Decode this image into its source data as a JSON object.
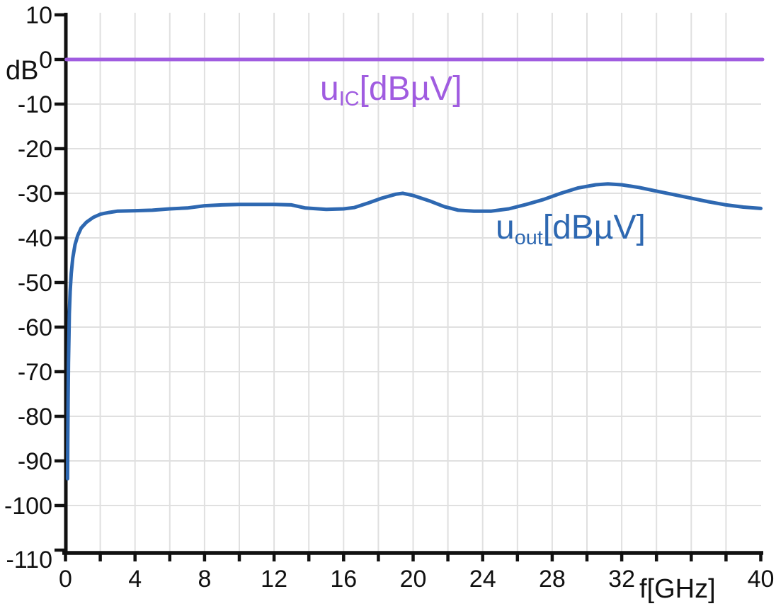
{
  "chart_data": {
    "type": "line",
    "title": "",
    "xlabel": "f[GHz]",
    "ylabel": "dB",
    "xlim": [
      0,
      40
    ],
    "ylim": [
      -110,
      10
    ],
    "grid": true,
    "x_tick_step": 2,
    "x_labeled_ticks": [
      0,
      4,
      8,
      12,
      16,
      20,
      24,
      28,
      32,
      40
    ],
    "y_ticks": [
      10,
      0,
      -10,
      -20,
      -30,
      -40,
      -50,
      -60,
      -70,
      -80,
      -90,
      -100,
      -110
    ],
    "grid_color": "#e0e0e0",
    "axis_color": "#111111",
    "series": [
      {
        "name": "u_IC[dBµV]",
        "label_parts": {
          "main": "u",
          "sub": "IC",
          "rest": "[dBµV]"
        },
        "color": "#a05ce0",
        "points": [
          [
            0.05,
            0
          ],
          [
            40.1,
            0
          ]
        ]
      },
      {
        "name": "u_out[dBµV]",
        "label_parts": {
          "main": "u",
          "sub": "out",
          "rest": "[dBµV]"
        },
        "color": "#2e68b1",
        "points": [
          [
            0.12,
            -94
          ],
          [
            0.13,
            -86
          ],
          [
            0.15,
            -76
          ],
          [
            0.17,
            -68
          ],
          [
            0.2,
            -62
          ],
          [
            0.22,
            -57
          ],
          [
            0.27,
            -52
          ],
          [
            0.33,
            -48
          ],
          [
            0.42,
            -44.5
          ],
          [
            0.55,
            -41.5
          ],
          [
            0.7,
            -39.5
          ],
          [
            0.9,
            -37.8
          ],
          [
            1.2,
            -36.5
          ],
          [
            1.6,
            -35.4
          ],
          [
            2,
            -34.7
          ],
          [
            2.5,
            -34.3
          ],
          [
            3,
            -34
          ],
          [
            4,
            -33.9
          ],
          [
            5,
            -33.8
          ],
          [
            6,
            -33.5
          ],
          [
            7,
            -33.3
          ],
          [
            8,
            -32.8
          ],
          [
            9,
            -32.6
          ],
          [
            10,
            -32.5
          ],
          [
            11,
            -32.5
          ],
          [
            12,
            -32.5
          ],
          [
            13,
            -32.6
          ],
          [
            13.8,
            -33.3
          ],
          [
            15,
            -33.6
          ],
          [
            16,
            -33.5
          ],
          [
            16.6,
            -33.2
          ],
          [
            17.4,
            -32.2
          ],
          [
            18.2,
            -31.1
          ],
          [
            19,
            -30.2
          ],
          [
            19.4,
            -30
          ],
          [
            20,
            -30.5
          ],
          [
            21,
            -31.8
          ],
          [
            21.8,
            -33
          ],
          [
            22.6,
            -33.8
          ],
          [
            23.5,
            -34
          ],
          [
            24.5,
            -34
          ],
          [
            25.5,
            -33.5
          ],
          [
            26.5,
            -32.5
          ],
          [
            27.5,
            -31.4
          ],
          [
            28.5,
            -30
          ],
          [
            29.5,
            -28.8
          ],
          [
            30.5,
            -28.1
          ],
          [
            31.2,
            -27.9
          ],
          [
            32,
            -28.1
          ],
          [
            33,
            -28.7
          ],
          [
            34,
            -29.5
          ],
          [
            35,
            -30.3
          ],
          [
            36,
            -31.1
          ],
          [
            37,
            -31.9
          ],
          [
            38,
            -32.6
          ],
          [
            39,
            -33.1
          ],
          [
            40,
            -33.4
          ]
        ]
      }
    ]
  }
}
